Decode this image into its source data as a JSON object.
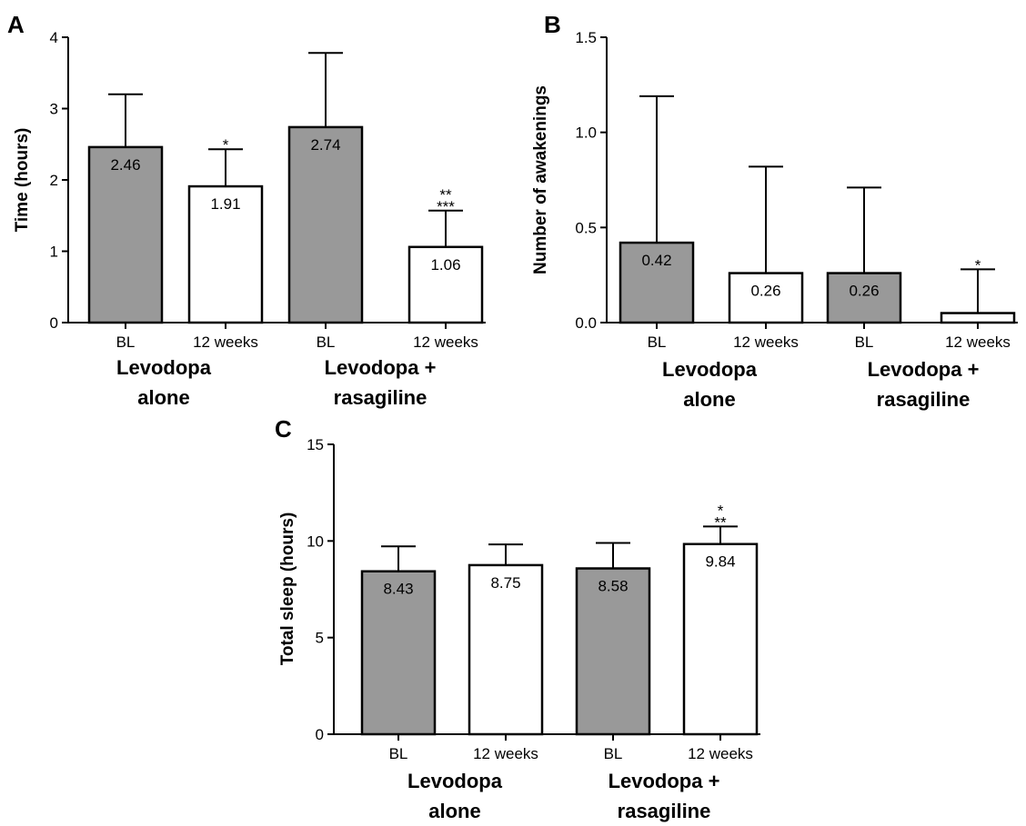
{
  "colors": {
    "baseline_fill": "#999999",
    "week12_fill": "#ffffff",
    "stroke": "#000000"
  },
  "chart_data": [
    {
      "panel": "A",
      "type": "bar",
      "ylabel": "Time (hours)",
      "ylim": [
        0,
        4
      ],
      "yticks": [
        0,
        1,
        2,
        3,
        4
      ],
      "categories": [
        "BL",
        "12 weeks",
        "BL",
        "12 weeks"
      ],
      "groups": [
        "Levodopa alone",
        "Levodopa + rasagiline"
      ],
      "values": [
        2.46,
        1.91,
        2.74,
        1.06
      ],
      "value_labels": [
        "2.46",
        "1.91",
        "2.74",
        "1.06"
      ],
      "error_upper": [
        3.2,
        2.43,
        3.78,
        1.57
      ],
      "significance": [
        [],
        [
          "*"
        ],
        [],
        [
          "**",
          "***"
        ]
      ]
    },
    {
      "panel": "B",
      "type": "bar",
      "ylabel": "Number of awakenings",
      "ylim": [
        0,
        1.5
      ],
      "yticks": [
        0.0,
        0.5,
        1.0,
        1.5
      ],
      "ytick_labels": [
        "0.0",
        "0.5",
        "1.0",
        "1.5"
      ],
      "categories": [
        "BL",
        "12 weeks",
        "BL",
        "12 weeks"
      ],
      "groups": [
        "Levodopa alone",
        "Levodopa + rasagiline"
      ],
      "values": [
        0.42,
        0.26,
        0.26,
        0.05
      ],
      "value_labels": [
        "0.42",
        "0.26",
        "0.26",
        ""
      ],
      "error_upper": [
        1.19,
        0.82,
        0.71,
        0.28
      ],
      "significance": [
        [],
        [],
        [],
        [
          "*"
        ]
      ]
    },
    {
      "panel": "C",
      "type": "bar",
      "ylabel": "Total sleep (hours)",
      "ylim": [
        0,
        15
      ],
      "yticks": [
        0,
        5,
        10,
        15
      ],
      "categories": [
        "BL",
        "12 weeks",
        "BL",
        "12 weeks"
      ],
      "groups": [
        "Levodopa alone",
        "Levodopa + rasagiline"
      ],
      "values": [
        8.43,
        8.75,
        8.58,
        9.84
      ],
      "value_labels": [
        "8.43",
        "8.75",
        "8.58",
        "9.84"
      ],
      "error_upper": [
        9.72,
        9.82,
        9.9,
        10.75
      ],
      "significance": [
        [],
        [],
        [],
        [
          "*",
          "**"
        ]
      ]
    }
  ]
}
